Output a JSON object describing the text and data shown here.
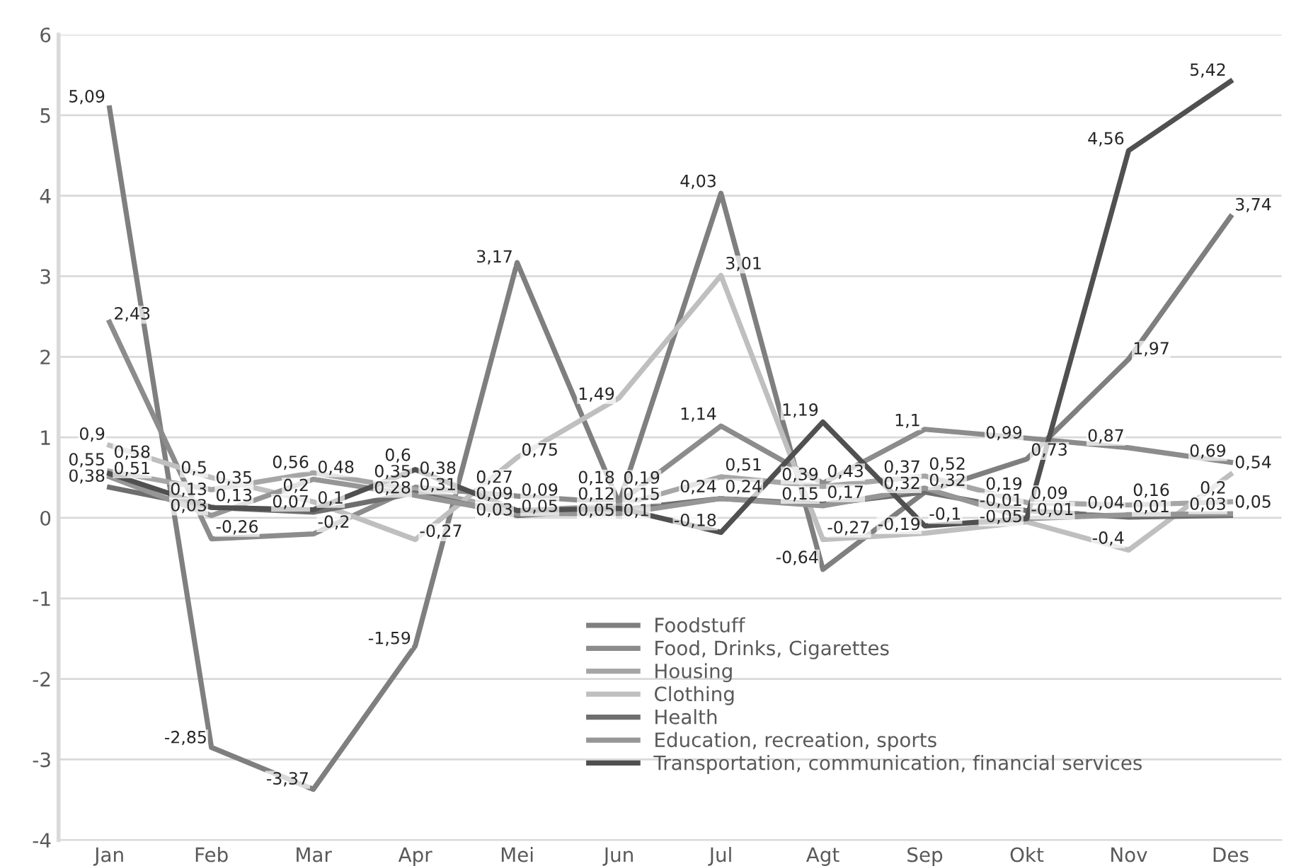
{
  "chart_data": {
    "type": "line",
    "categories": [
      "Jan",
      "Feb",
      "Mar",
      "Apr",
      "Mei",
      "Jun",
      "Jul",
      "Agt",
      "Sep",
      "Okt",
      "Nov",
      "Des"
    ],
    "series": [
      {
        "name": "Foodstuff",
        "color": "#7f7f7f",
        "values": [
          5.09,
          -2.85,
          -3.37,
          -1.59,
          3.17,
          0.18,
          4.03,
          -0.64,
          0.32,
          0.73,
          1.97,
          3.74
        ],
        "value_labels": [
          "5,09",
          "-2,85",
          "-3,37",
          "-1,59",
          "3,17",
          "0,18",
          "4,03",
          "-0,64",
          "0,32",
          "0,73",
          "1,97",
          "3,74"
        ]
      },
      {
        "name": "Food, Drinks, Cigarettes",
        "color": "#8c8c8c",
        "values": [
          2.43,
          -0.26,
          -0.2,
          0.38,
          0.27,
          0.19,
          1.14,
          0.43,
          1.1,
          0.99,
          0.87,
          0.69
        ],
        "value_labels": [
          "2,43",
          "-0,26",
          "-0,2",
          "0,38",
          "0,27",
          "0,19",
          "1,14",
          "0,43",
          "1,1",
          "0,99",
          "0,87",
          "0,69"
        ]
      },
      {
        "name": "Housing",
        "color": "#a6a6a6",
        "values": [
          0.58,
          0.35,
          0.56,
          0.35,
          0.09,
          0.15,
          0.51,
          0.39,
          0.52,
          0.19,
          0.16,
          0.2
        ],
        "value_labels": [
          "0,58",
          "0,35",
          "0,56",
          "0,35",
          "0,09",
          "0,15",
          "0,51",
          "0,39",
          "0,52",
          "0,19",
          "0,16",
          "0,2"
        ]
      },
      {
        "name": "Clothing",
        "color": "#bfbfbf",
        "values": [
          0.9,
          0.5,
          0.2,
          -0.27,
          0.75,
          1.49,
          3.01,
          -0.27,
          -0.19,
          -0.05,
          -0.4,
          0.54
        ],
        "value_labels": [
          "0,9",
          "0,5",
          "0,2",
          "-0,27",
          "0,75",
          "1,49",
          "3,01",
          "-0,27",
          "-0,19",
          "-0,05",
          "-0,4",
          "0,54"
        ]
      },
      {
        "name": "Health",
        "color": "#6e6e6e",
        "values": [
          0.38,
          0.13,
          0.07,
          0.31,
          0.03,
          0.1,
          0.24,
          0.17,
          0.32,
          0.09,
          0.01,
          0.03
        ],
        "value_labels": [
          "0,38",
          "0,13",
          "0,07",
          "0,31",
          "0,03",
          "0,1",
          "0,24",
          "0,17",
          "0,32",
          "0,09",
          "0,01",
          "0,03"
        ]
      },
      {
        "name": "Education, recreation, sports",
        "color": "#969696",
        "values": [
          0.51,
          0.03,
          0.48,
          0.28,
          0.05,
          0.05,
          0.24,
          0.15,
          0.37,
          -0.01,
          0.04,
          0.05
        ],
        "value_labels": [
          "0,51",
          "0,03",
          "0,48",
          "0,28",
          "0,05",
          "0,05",
          "0,24",
          "0,15",
          "0,37",
          "-0,01",
          "0,04",
          "0,05"
        ]
      },
      {
        "name": "Transportation, communication, financial services",
        "color": "#505050",
        "values": [
          0.55,
          0.13,
          0.1,
          0.6,
          0.09,
          0.12,
          -0.18,
          1.19,
          -0.1,
          -0.01,
          4.56,
          5.42
        ],
        "value_labels": [
          "0,55",
          "0,13",
          "0,1",
          "0,6",
          "0,09",
          "0,12",
          "-0,18",
          "1,19",
          "-0,1",
          "-0,01",
          "4,56",
          "5,42"
        ]
      }
    ],
    "ylim": [
      -4,
      6
    ],
    "yticks": [
      -4,
      -3,
      -2,
      -1,
      0,
      1,
      2,
      3,
      4,
      5,
      6
    ],
    "grid": "y",
    "legend": "bottom",
    "marker": "none",
    "line_style": "solid"
  }
}
